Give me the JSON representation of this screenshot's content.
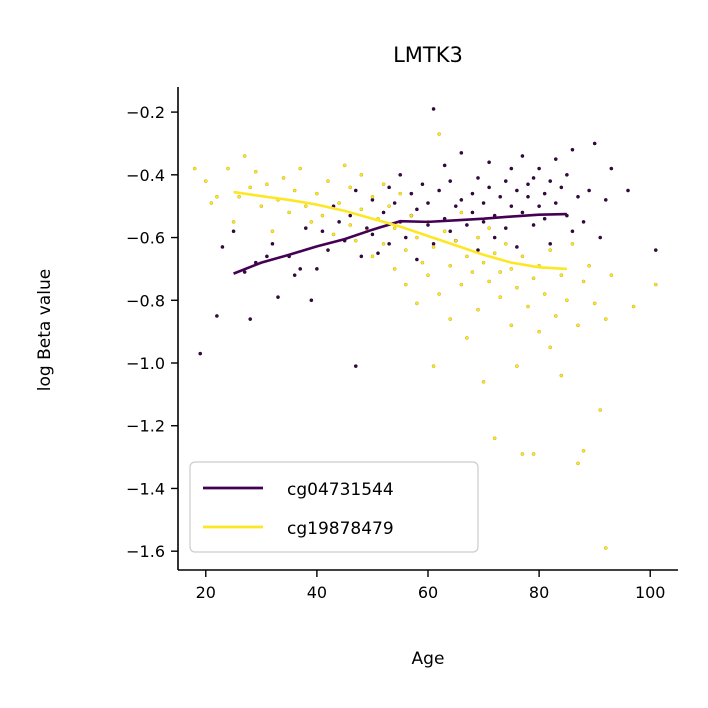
{
  "chart_data": {
    "type": "scatter",
    "title": "LMTK3",
    "xlabel": "Age",
    "ylabel": "log Beta value",
    "xlim": [
      15,
      105
    ],
    "ylim": [
      -1.66,
      -0.12
    ],
    "xticks": [
      20,
      40,
      60,
      80,
      100
    ],
    "yticks": [
      -1.6,
      -1.4,
      -1.2,
      -1.0,
      -0.8,
      -0.6,
      -0.4,
      -0.2
    ],
    "xtick_labels": [
      "20",
      "40",
      "60",
      "80",
      "100"
    ],
    "ytick_labels": [
      "−1.6",
      "−1.4",
      "−1.2",
      "−1.0",
      "−0.8",
      "−0.6",
      "−0.4",
      "−0.2"
    ],
    "grid": false,
    "legend_position": "lower-left",
    "series": [
      {
        "name": "cg04731544",
        "color": "#440154",
        "trend": {
          "x": [
            25,
            30,
            35,
            40,
            45,
            50,
            55,
            60,
            65,
            70,
            75,
            80,
            85
          ],
          "y": [
            -0.715,
            -0.68,
            -0.655,
            -0.628,
            -0.605,
            -0.575,
            -0.548,
            -0.55,
            -0.545,
            -0.54,
            -0.533,
            -0.527,
            -0.525
          ]
        },
        "points": [
          [
            19,
            -0.97
          ],
          [
            22,
            -0.85
          ],
          [
            23,
            -0.63
          ],
          [
            25,
            -0.58
          ],
          [
            27,
            -0.71
          ],
          [
            28,
            -0.86
          ],
          [
            29,
            -0.68
          ],
          [
            31,
            -0.66
          ],
          [
            32,
            -0.62
          ],
          [
            33,
            -0.79
          ],
          [
            35,
            -0.66
          ],
          [
            36,
            -0.72
          ],
          [
            37,
            -0.7
          ],
          [
            38,
            -0.57
          ],
          [
            39,
            -0.8
          ],
          [
            40,
            -0.7
          ],
          [
            41,
            -0.58
          ],
          [
            42,
            -0.64
          ],
          [
            43,
            -0.5
          ],
          [
            44,
            -0.55
          ],
          [
            45,
            -0.61
          ],
          [
            46,
            -0.53
          ],
          [
            47,
            -0.45
          ],
          [
            47,
            -1.01
          ],
          [
            48,
            -0.66
          ],
          [
            49,
            -0.57
          ],
          [
            50,
            -0.59
          ],
          [
            50,
            -0.48
          ],
          [
            51,
            -0.65
          ],
          [
            52,
            -0.52
          ],
          [
            53,
            -0.44
          ],
          [
            53,
            -0.62
          ],
          [
            54,
            -0.49
          ],
          [
            55,
            -0.55
          ],
          [
            55,
            -0.4
          ],
          [
            56,
            -0.6
          ],
          [
            57,
            -0.46
          ],
          [
            57,
            -0.53
          ],
          [
            58,
            -0.51
          ],
          [
            58,
            -0.67
          ],
          [
            59,
            -0.43
          ],
          [
            60,
            -0.56
          ],
          [
            60,
            -0.49
          ],
          [
            61,
            -0.19
          ],
          [
            61,
            -0.62
          ],
          [
            62,
            -0.45
          ],
          [
            63,
            -0.54
          ],
          [
            63,
            -0.37
          ],
          [
            64,
            -0.58
          ],
          [
            64,
            -0.42
          ],
          [
            65,
            -0.5
          ],
          [
            65,
            -0.61
          ],
          [
            66,
            -0.33
          ],
          [
            66,
            -0.48
          ],
          [
            67,
            -0.56
          ],
          [
            68,
            -0.46
          ],
          [
            68,
            -0.52
          ],
          [
            69,
            -0.41
          ],
          [
            69,
            -0.64
          ],
          [
            70,
            -0.49
          ],
          [
            70,
            -0.55
          ],
          [
            71,
            -0.36
          ],
          [
            71,
            -0.44
          ],
          [
            72,
            -0.53
          ],
          [
            72,
            -0.6
          ],
          [
            73,
            -0.47
          ],
          [
            74,
            -0.42
          ],
          [
            74,
            -0.57
          ],
          [
            75,
            -0.5
          ],
          [
            75,
            -0.38
          ],
          [
            76,
            -0.45
          ],
          [
            76,
            -0.63
          ],
          [
            77,
            -0.52
          ],
          [
            77,
            -0.34
          ],
          [
            78,
            -0.47
          ],
          [
            78,
            -0.43
          ],
          [
            79,
            -0.56
          ],
          [
            79,
            -0.41
          ],
          [
            80,
            -0.5
          ],
          [
            80,
            -0.38
          ],
          [
            81,
            -0.46
          ],
          [
            81,
            -0.54
          ],
          [
            82,
            -0.42
          ],
          [
            82,
            -0.62
          ],
          [
            83,
            -0.49
          ],
          [
            83,
            -0.35
          ],
          [
            84,
            -0.44
          ],
          [
            85,
            -0.53
          ],
          [
            85,
            -0.4
          ],
          [
            86,
            -0.32
          ],
          [
            86,
            -0.58
          ],
          [
            87,
            -0.47
          ],
          [
            88,
            -0.55
          ],
          [
            89,
            -0.45
          ],
          [
            90,
            -0.3
          ],
          [
            91,
            -0.6
          ],
          [
            92,
            -0.48
          ],
          [
            93,
            -0.38
          ],
          [
            96,
            -0.45
          ],
          [
            101,
            -0.64
          ]
        ]
      },
      {
        "name": "cg19878479",
        "color": "#fde725",
        "trend": {
          "x": [
            25,
            30,
            35,
            40,
            45,
            50,
            55,
            60,
            65,
            70,
            75,
            80,
            85
          ],
          "y": [
            -0.455,
            -0.468,
            -0.48,
            -0.495,
            -0.515,
            -0.54,
            -0.565,
            -0.595,
            -0.625,
            -0.655,
            -0.68,
            -0.695,
            -0.7
          ]
        },
        "points": [
          [
            18,
            -0.38
          ],
          [
            20,
            -0.42
          ],
          [
            21,
            -0.49
          ],
          [
            22,
            -0.47
          ],
          [
            24,
            -0.38
          ],
          [
            25,
            -0.55
          ],
          [
            26,
            -0.47
          ],
          [
            27,
            -0.34
          ],
          [
            28,
            -0.44
          ],
          [
            29,
            -0.39
          ],
          [
            30,
            -0.5
          ],
          [
            31,
            -0.43
          ],
          [
            32,
            -0.58
          ],
          [
            33,
            -0.48
          ],
          [
            34,
            -0.41
          ],
          [
            35,
            -0.52
          ],
          [
            36,
            -0.45
          ],
          [
            37,
            -0.38
          ],
          [
            38,
            -0.5
          ],
          [
            39,
            -0.55
          ],
          [
            40,
            -0.46
          ],
          [
            41,
            -0.53
          ],
          [
            42,
            -0.42
          ],
          [
            43,
            -0.59
          ],
          [
            44,
            -0.49
          ],
          [
            45,
            -0.37
          ],
          [
            46,
            -0.56
          ],
          [
            46,
            -0.44
          ],
          [
            47,
            -0.61
          ],
          [
            48,
            -0.51
          ],
          [
            48,
            -0.4
          ],
          [
            49,
            -0.58
          ],
          [
            50,
            -0.47
          ],
          [
            50,
            -0.66
          ],
          [
            51,
            -0.54
          ],
          [
            52,
            -0.43
          ],
          [
            52,
            -0.62
          ],
          [
            53,
            -0.5
          ],
          [
            54,
            -0.7
          ],
          [
            54,
            -0.57
          ],
          [
            55,
            -0.46
          ],
          [
            56,
            -0.64
          ],
          [
            56,
            -0.75
          ],
          [
            57,
            -0.53
          ],
          [
            58,
            -0.6
          ],
          [
            58,
            -0.81
          ],
          [
            59,
            -0.68
          ],
          [
            60,
            -0.55
          ],
          [
            60,
            -0.72
          ],
          [
            61,
            -0.63
          ],
          [
            61,
            -1.01
          ],
          [
            62,
            -0.27
          ],
          [
            62,
            -0.78
          ],
          [
            63,
            -0.58
          ],
          [
            64,
            -0.69
          ],
          [
            64,
            -0.86
          ],
          [
            65,
            -0.61
          ],
          [
            66,
            -0.75
          ],
          [
            66,
            -0.52
          ],
          [
            67,
            -0.66
          ],
          [
            67,
            -0.92
          ],
          [
            68,
            -0.71
          ],
          [
            69,
            -0.6
          ],
          [
            69,
            -0.83
          ],
          [
            70,
            -0.68
          ],
          [
            70,
            -1.06
          ],
          [
            71,
            -0.74
          ],
          [
            71,
            -0.57
          ],
          [
            72,
            -0.65
          ],
          [
            72,
            -1.24
          ],
          [
            73,
            -0.79
          ],
          [
            73,
            -0.71
          ],
          [
            74,
            -0.62
          ],
          [
            75,
            -0.88
          ],
          [
            75,
            -0.7
          ],
          [
            76,
            -0.76
          ],
          [
            76,
            -1.01
          ],
          [
            77,
            -0.66
          ],
          [
            77,
            -1.29
          ],
          [
            78,
            -0.82
          ],
          [
            79,
            -0.73
          ],
          [
            79,
            -1.29
          ],
          [
            80,
            -0.69
          ],
          [
            80,
            -0.9
          ],
          [
            81,
            -0.78
          ],
          [
            82,
            -0.64
          ],
          [
            82,
            -0.95
          ],
          [
            83,
            -0.85
          ],
          [
            84,
            -0.72
          ],
          [
            84,
            -1.04
          ],
          [
            85,
            -0.8
          ],
          [
            86,
            -0.62
          ],
          [
            87,
            -0.88
          ],
          [
            87,
            -1.32
          ],
          [
            88,
            -0.74
          ],
          [
            88,
            -1.28
          ],
          [
            89,
            -0.69
          ],
          [
            90,
            -0.81
          ],
          [
            91,
            -1.15
          ],
          [
            92,
            -1.59
          ],
          [
            92,
            -0.86
          ],
          [
            93,
            -0.72
          ],
          [
            97,
            -0.82
          ],
          [
            101,
            -0.75
          ]
        ]
      }
    ]
  }
}
